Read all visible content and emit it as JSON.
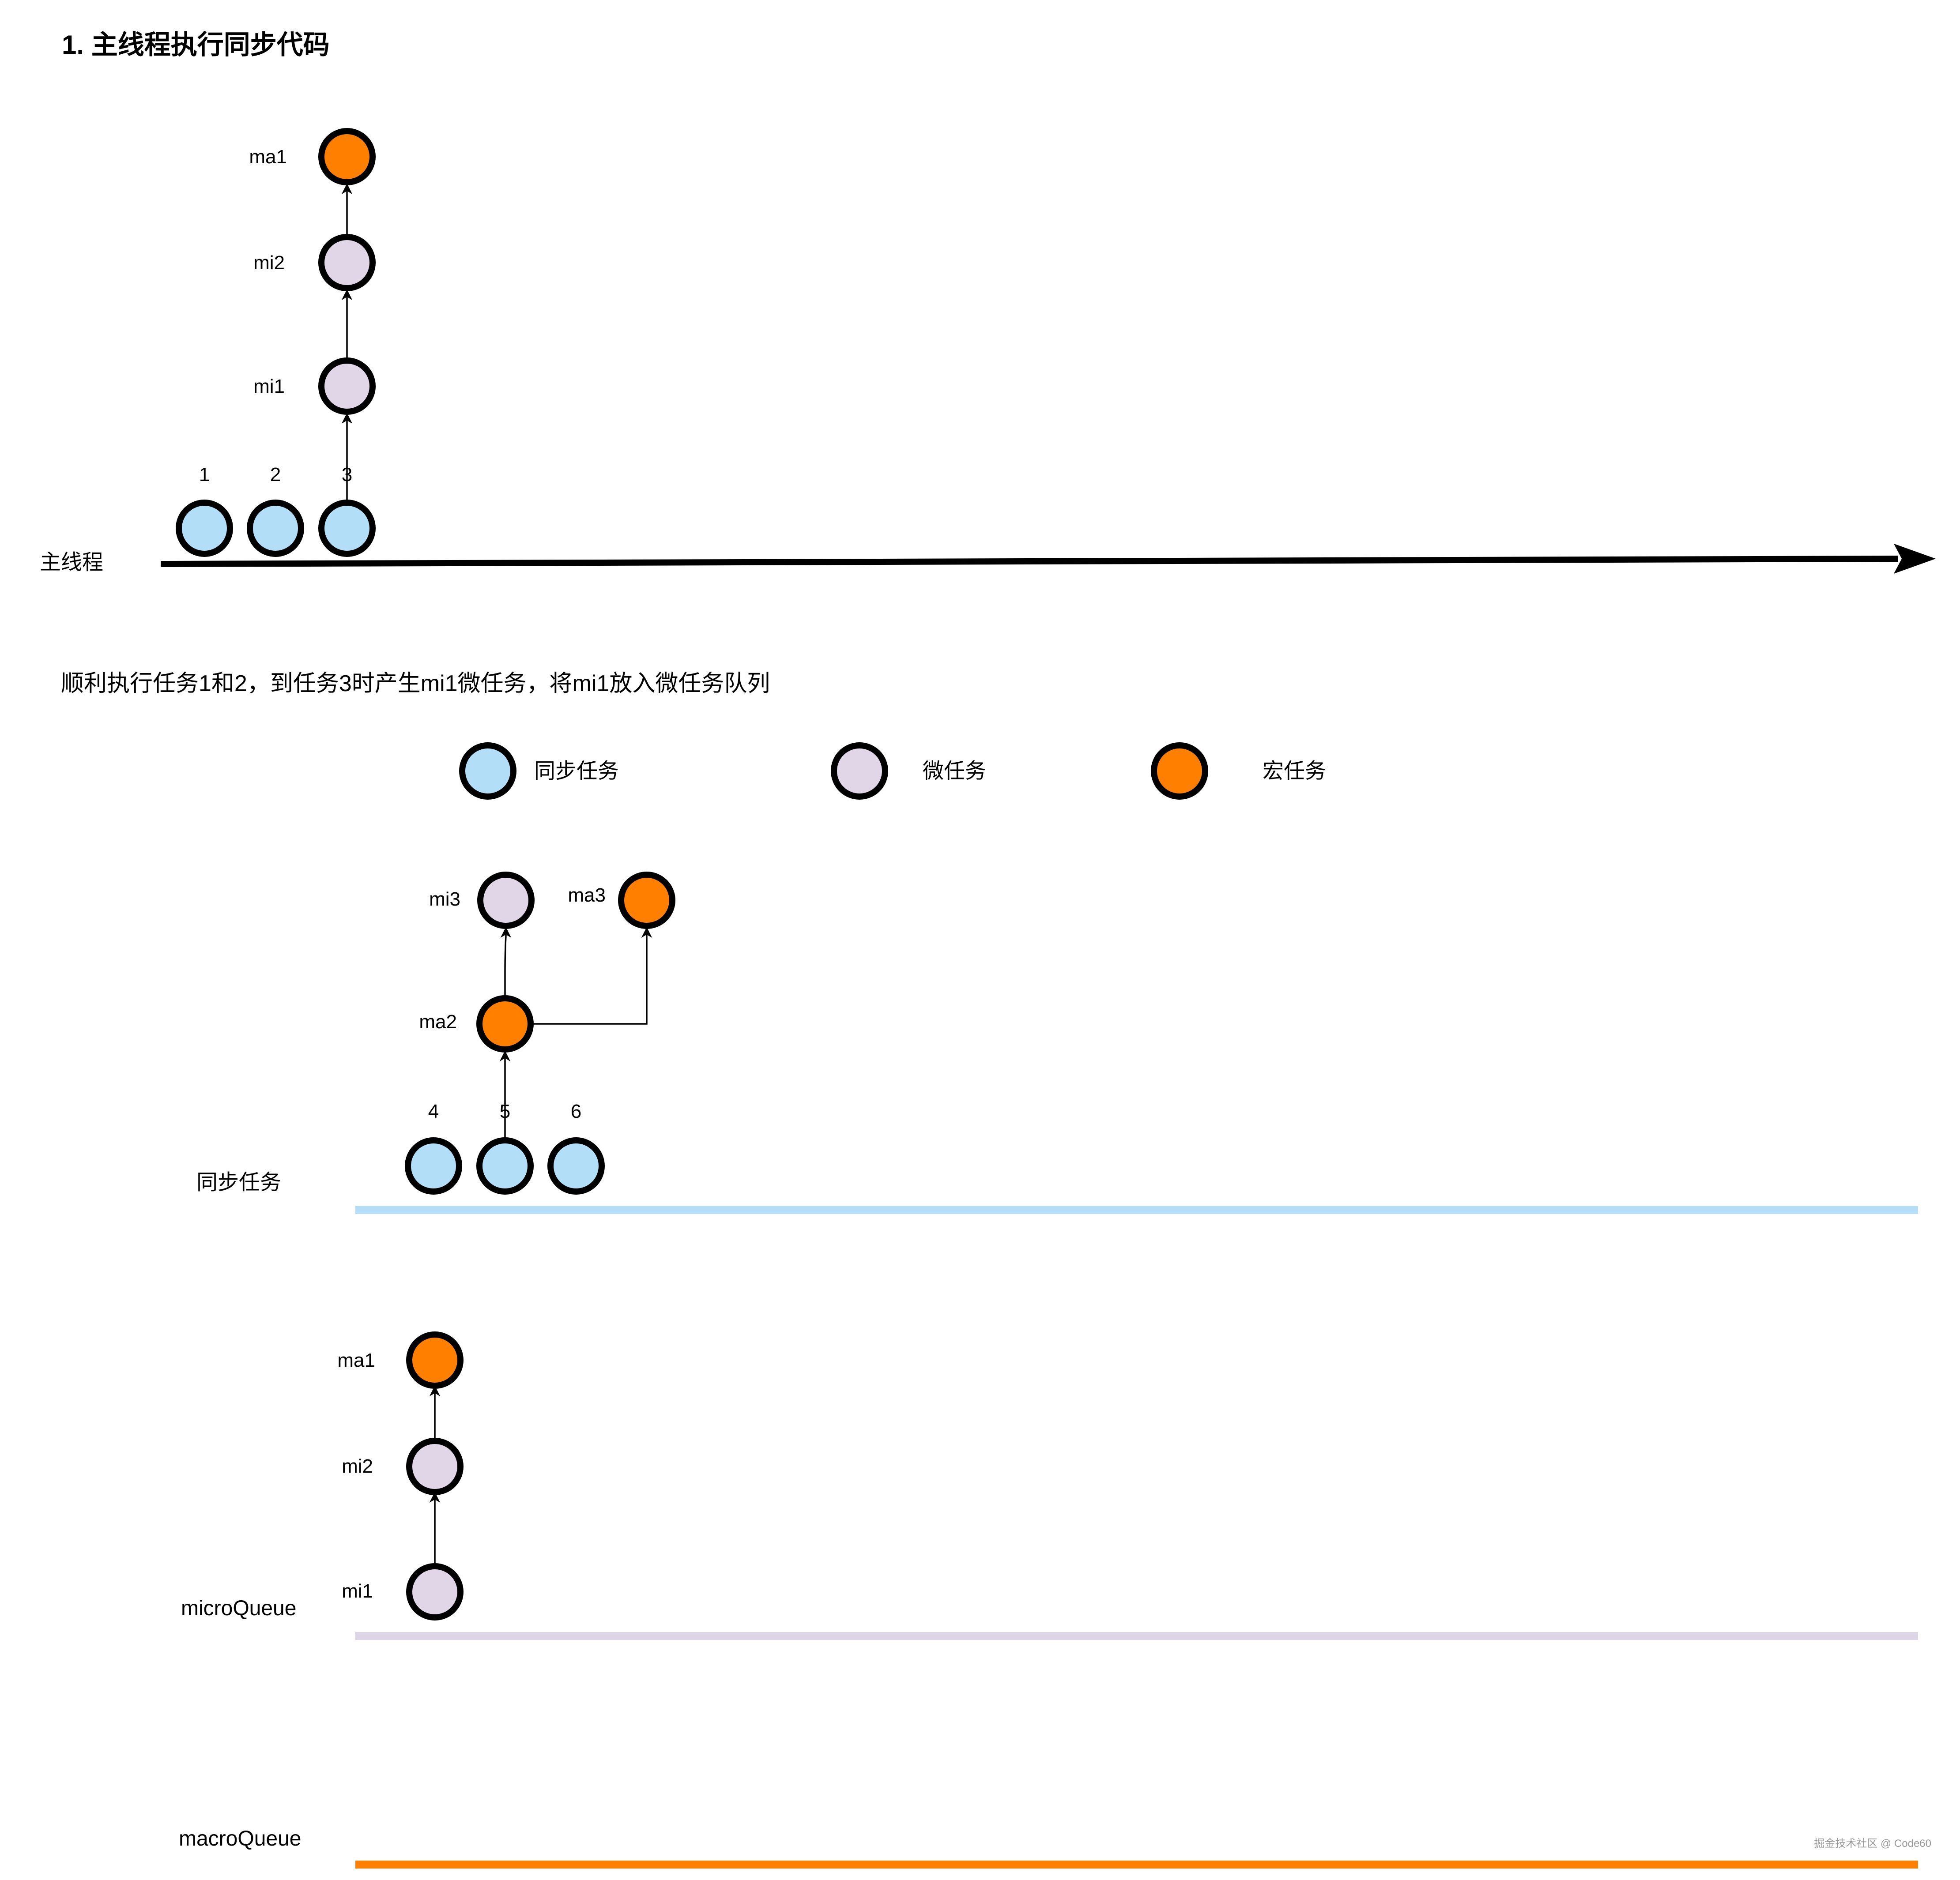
{
  "title": "1. 主线程执行同步代码",
  "description": "顺利执行任务1和2，到任务3时产生mi1微任务，将mi1放入微任务队列",
  "watermark": "掘金技术社区 @ Code60",
  "colors": {
    "sync": "#B3DEF8",
    "micro": "#E0D6E8",
    "macro": "#FF8000",
    "sync_line": "#B3DEF8",
    "micro_line": "#DDD4E6",
    "macro_line": "#FF8000"
  },
  "main_thread": {
    "label": "主线程",
    "sync_tasks": [
      "1",
      "2",
      "3"
    ],
    "stack": [
      "mi1",
      "mi2",
      "ma1"
    ]
  },
  "legend": [
    {
      "label": "同步任务",
      "kind": "sync"
    },
    {
      "label": "微任务",
      "kind": "micro"
    },
    {
      "label": "宏任务",
      "kind": "macro"
    }
  ],
  "sync_queue": {
    "label": "同步任务",
    "tasks": [
      "4",
      "5",
      "6"
    ],
    "children": {
      "ma2": "ma2",
      "mi3": "mi3",
      "ma3": "ma3"
    }
  },
  "micro_queue": {
    "label": "microQueue",
    "stack": [
      "mi1",
      "mi2",
      "ma1"
    ]
  },
  "macro_queue": {
    "label": "macroQueue"
  }
}
